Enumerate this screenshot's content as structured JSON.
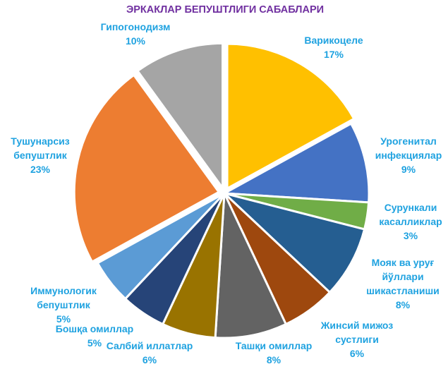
{
  "chart_data": {
    "type": "pie",
    "title": "ЭРКАКЛАР БЕПУШТЛИГИ САБАБЛАРИ",
    "unit": "%",
    "slices": [
      {
        "label_lines": [
          "Варикоцеле"
        ],
        "value": 17,
        "color": "#FFC000"
      },
      {
        "label_lines": [
          "Урогенитал",
          "инфекциялар"
        ],
        "value": 9,
        "color": "#4472C4"
      },
      {
        "label_lines": [
          "Сурункали",
          "касалликлар"
        ],
        "value": 3,
        "color": "#70AD47"
      },
      {
        "label_lines": [
          "Мояк ва уруғ",
          "йўллари",
          "шикастланиши"
        ],
        "value": 8,
        "color": "#255E91"
      },
      {
        "label_lines": [
          "Жинсий мижоз",
          "сустлиги"
        ],
        "value": 6,
        "color": "#9E480E"
      },
      {
        "label_lines": [
          "Ташқи омиллар"
        ],
        "value": 8,
        "color": "#636363"
      },
      {
        "label_lines": [
          "Салбий иллатлар"
        ],
        "value": 6,
        "color": "#997300"
      },
      {
        "label_lines": [
          "Бошқа омиллар"
        ],
        "value": 5,
        "color": "#264478"
      },
      {
        "label_lines": [
          "Иммунологик",
          "бепуштлик"
        ],
        "value": 5,
        "color": "#5B9BD5"
      },
      {
        "label_lines": [
          "Тушунарсиз",
          "бепуштлик"
        ],
        "value": 23,
        "color": "#ED7D31"
      },
      {
        "label_lines": [
          "Гипогонодизм"
        ],
        "value": 10,
        "color": "#A5A5A5"
      }
    ],
    "legend": "none",
    "colors": {
      "title": "#7030A0",
      "labels": "#1FA2E0",
      "slice_border": "#FFFFFF"
    }
  }
}
